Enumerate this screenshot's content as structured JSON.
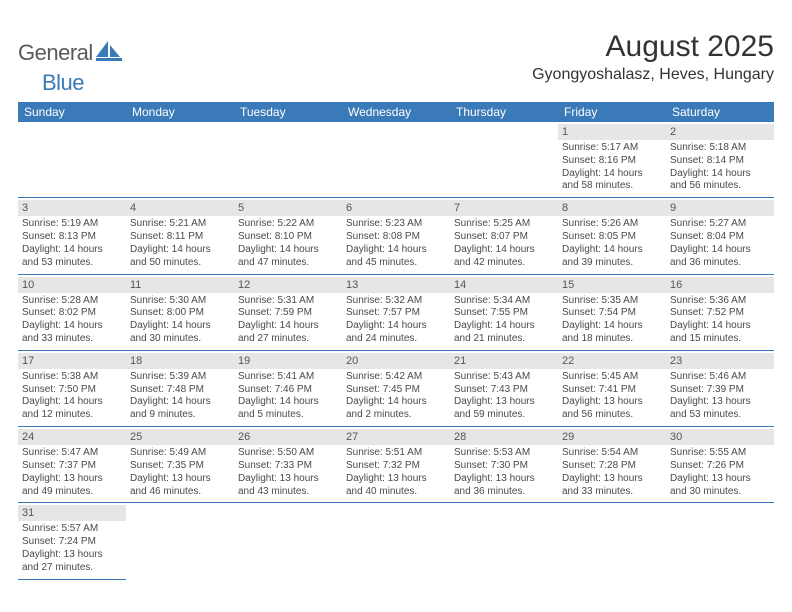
{
  "brand": {
    "part1": "General",
    "part2": "Blue"
  },
  "title": "August 2025",
  "location": "Gyongyoshalasz, Heves, Hungary",
  "colors": {
    "accent": "#3a7ab8",
    "dayNumBg": "#e6e6e6",
    "text": "#333333"
  },
  "weekdays": [
    "Sunday",
    "Monday",
    "Tuesday",
    "Wednesday",
    "Thursday",
    "Friday",
    "Saturday"
  ],
  "weeks": [
    [
      {
        "blank": true
      },
      {
        "blank": true
      },
      {
        "blank": true
      },
      {
        "blank": true
      },
      {
        "blank": true
      },
      {
        "day": "1",
        "sunrise": "Sunrise: 5:17 AM",
        "sunset": "Sunset: 8:16 PM",
        "daylight1": "Daylight: 14 hours",
        "daylight2": "and 58 minutes."
      },
      {
        "day": "2",
        "sunrise": "Sunrise: 5:18 AM",
        "sunset": "Sunset: 8:14 PM",
        "daylight1": "Daylight: 14 hours",
        "daylight2": "and 56 minutes."
      }
    ],
    [
      {
        "day": "3",
        "sunrise": "Sunrise: 5:19 AM",
        "sunset": "Sunset: 8:13 PM",
        "daylight1": "Daylight: 14 hours",
        "daylight2": "and 53 minutes."
      },
      {
        "day": "4",
        "sunrise": "Sunrise: 5:21 AM",
        "sunset": "Sunset: 8:11 PM",
        "daylight1": "Daylight: 14 hours",
        "daylight2": "and 50 minutes."
      },
      {
        "day": "5",
        "sunrise": "Sunrise: 5:22 AM",
        "sunset": "Sunset: 8:10 PM",
        "daylight1": "Daylight: 14 hours",
        "daylight2": "and 47 minutes."
      },
      {
        "day": "6",
        "sunrise": "Sunrise: 5:23 AM",
        "sunset": "Sunset: 8:08 PM",
        "daylight1": "Daylight: 14 hours",
        "daylight2": "and 45 minutes."
      },
      {
        "day": "7",
        "sunrise": "Sunrise: 5:25 AM",
        "sunset": "Sunset: 8:07 PM",
        "daylight1": "Daylight: 14 hours",
        "daylight2": "and 42 minutes."
      },
      {
        "day": "8",
        "sunrise": "Sunrise: 5:26 AM",
        "sunset": "Sunset: 8:05 PM",
        "daylight1": "Daylight: 14 hours",
        "daylight2": "and 39 minutes."
      },
      {
        "day": "9",
        "sunrise": "Sunrise: 5:27 AM",
        "sunset": "Sunset: 8:04 PM",
        "daylight1": "Daylight: 14 hours",
        "daylight2": "and 36 minutes."
      }
    ],
    [
      {
        "day": "10",
        "sunrise": "Sunrise: 5:28 AM",
        "sunset": "Sunset: 8:02 PM",
        "daylight1": "Daylight: 14 hours",
        "daylight2": "and 33 minutes."
      },
      {
        "day": "11",
        "sunrise": "Sunrise: 5:30 AM",
        "sunset": "Sunset: 8:00 PM",
        "daylight1": "Daylight: 14 hours",
        "daylight2": "and 30 minutes."
      },
      {
        "day": "12",
        "sunrise": "Sunrise: 5:31 AM",
        "sunset": "Sunset: 7:59 PM",
        "daylight1": "Daylight: 14 hours",
        "daylight2": "and 27 minutes."
      },
      {
        "day": "13",
        "sunrise": "Sunrise: 5:32 AM",
        "sunset": "Sunset: 7:57 PM",
        "daylight1": "Daylight: 14 hours",
        "daylight2": "and 24 minutes."
      },
      {
        "day": "14",
        "sunrise": "Sunrise: 5:34 AM",
        "sunset": "Sunset: 7:55 PM",
        "daylight1": "Daylight: 14 hours",
        "daylight2": "and 21 minutes."
      },
      {
        "day": "15",
        "sunrise": "Sunrise: 5:35 AM",
        "sunset": "Sunset: 7:54 PM",
        "daylight1": "Daylight: 14 hours",
        "daylight2": "and 18 minutes."
      },
      {
        "day": "16",
        "sunrise": "Sunrise: 5:36 AM",
        "sunset": "Sunset: 7:52 PM",
        "daylight1": "Daylight: 14 hours",
        "daylight2": "and 15 minutes."
      }
    ],
    [
      {
        "day": "17",
        "sunrise": "Sunrise: 5:38 AM",
        "sunset": "Sunset: 7:50 PM",
        "daylight1": "Daylight: 14 hours",
        "daylight2": "and 12 minutes."
      },
      {
        "day": "18",
        "sunrise": "Sunrise: 5:39 AM",
        "sunset": "Sunset: 7:48 PM",
        "daylight1": "Daylight: 14 hours",
        "daylight2": "and 9 minutes."
      },
      {
        "day": "19",
        "sunrise": "Sunrise: 5:41 AM",
        "sunset": "Sunset: 7:46 PM",
        "daylight1": "Daylight: 14 hours",
        "daylight2": "and 5 minutes."
      },
      {
        "day": "20",
        "sunrise": "Sunrise: 5:42 AM",
        "sunset": "Sunset: 7:45 PM",
        "daylight1": "Daylight: 14 hours",
        "daylight2": "and 2 minutes."
      },
      {
        "day": "21",
        "sunrise": "Sunrise: 5:43 AM",
        "sunset": "Sunset: 7:43 PM",
        "daylight1": "Daylight: 13 hours",
        "daylight2": "and 59 minutes."
      },
      {
        "day": "22",
        "sunrise": "Sunrise: 5:45 AM",
        "sunset": "Sunset: 7:41 PM",
        "daylight1": "Daylight: 13 hours",
        "daylight2": "and 56 minutes."
      },
      {
        "day": "23",
        "sunrise": "Sunrise: 5:46 AM",
        "sunset": "Sunset: 7:39 PM",
        "daylight1": "Daylight: 13 hours",
        "daylight2": "and 53 minutes."
      }
    ],
    [
      {
        "day": "24",
        "sunrise": "Sunrise: 5:47 AM",
        "sunset": "Sunset: 7:37 PM",
        "daylight1": "Daylight: 13 hours",
        "daylight2": "and 49 minutes."
      },
      {
        "day": "25",
        "sunrise": "Sunrise: 5:49 AM",
        "sunset": "Sunset: 7:35 PM",
        "daylight1": "Daylight: 13 hours",
        "daylight2": "and 46 minutes."
      },
      {
        "day": "26",
        "sunrise": "Sunrise: 5:50 AM",
        "sunset": "Sunset: 7:33 PM",
        "daylight1": "Daylight: 13 hours",
        "daylight2": "and 43 minutes."
      },
      {
        "day": "27",
        "sunrise": "Sunrise: 5:51 AM",
        "sunset": "Sunset: 7:32 PM",
        "daylight1": "Daylight: 13 hours",
        "daylight2": "and 40 minutes."
      },
      {
        "day": "28",
        "sunrise": "Sunrise: 5:53 AM",
        "sunset": "Sunset: 7:30 PM",
        "daylight1": "Daylight: 13 hours",
        "daylight2": "and 36 minutes."
      },
      {
        "day": "29",
        "sunrise": "Sunrise: 5:54 AM",
        "sunset": "Sunset: 7:28 PM",
        "daylight1": "Daylight: 13 hours",
        "daylight2": "and 33 minutes."
      },
      {
        "day": "30",
        "sunrise": "Sunrise: 5:55 AM",
        "sunset": "Sunset: 7:26 PM",
        "daylight1": "Daylight: 13 hours",
        "daylight2": "and 30 minutes."
      }
    ],
    [
      {
        "day": "31",
        "sunrise": "Sunrise: 5:57 AM",
        "sunset": "Sunset: 7:24 PM",
        "daylight1": "Daylight: 13 hours",
        "daylight2": "and 27 minutes."
      },
      {
        "blank": true
      },
      {
        "blank": true
      },
      {
        "blank": true
      },
      {
        "blank": true
      },
      {
        "blank": true
      },
      {
        "blank": true
      }
    ]
  ]
}
